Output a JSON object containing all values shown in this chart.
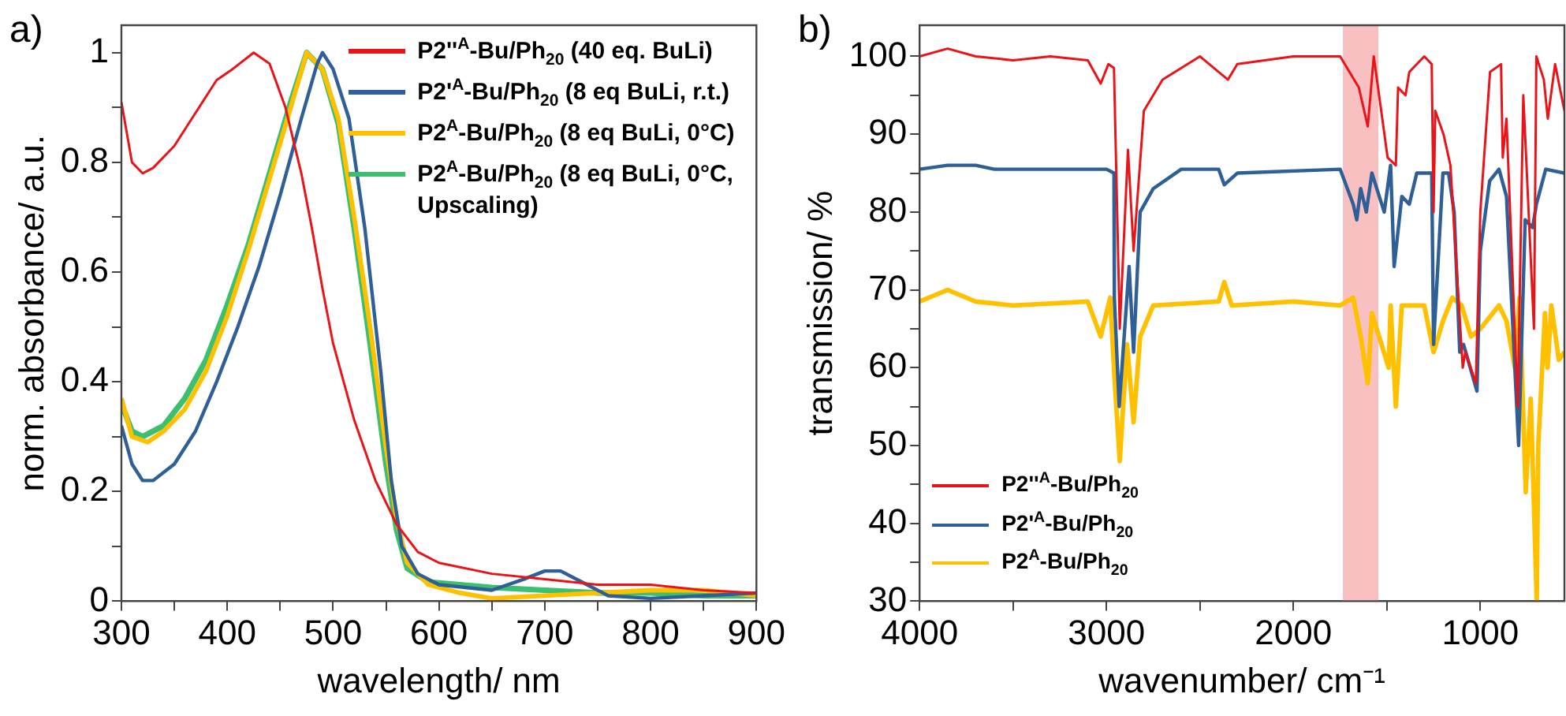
{
  "chart_data": [
    {
      "type": "line",
      "title": "a)",
      "xlabel": "wavelength/ nm",
      "ylabel": "norm. absorbance/ a.u.",
      "xlim": [
        300,
        900
      ],
      "ylim": [
        0,
        1.05
      ],
      "xticks": [
        300,
        {
          "value": 350,
          "label": null
        },
        400,
        {
          "value": 450,
          "label": null
        },
        500,
        {
          "value": 550,
          "label": null
        },
        600,
        {
          "value": 650,
          "label": null
        },
        700,
        {
          "value": 750,
          "label": null
        },
        800,
        {
          "value": 850,
          "label": null
        },
        900
      ],
      "yticks": [
        0,
        {
          "value": 0.1,
          "label": null
        },
        0.2,
        {
          "value": 0.3,
          "label": null
        },
        0.4,
        {
          "value": 0.5,
          "label": null
        },
        0.6,
        {
          "value": 0.7,
          "label": null
        },
        0.8,
        {
          "value": 0.9,
          "label": null
        },
        1
      ],
      "grid": false,
      "legend": "top right",
      "marker": "none",
      "line_style": "solid",
      "series": [
        {
          "name": "P2''$^{A}$-Bu/Ph$_{20}$ (40 eq. BuLi)",
          "color": "#e8141a",
          "x": [
            300,
            310,
            320,
            330,
            350,
            370,
            390,
            405,
            425,
            440,
            455,
            470,
            480,
            490,
            500,
            520,
            540,
            560,
            580,
            600,
            650,
            700,
            750,
            800,
            850,
            900
          ],
          "values": [
            0.91,
            0.8,
            0.78,
            0.79,
            0.83,
            0.89,
            0.95,
            0.97,
            1.0,
            0.98,
            0.9,
            0.78,
            0.68,
            0.57,
            0.47,
            0.33,
            0.22,
            0.14,
            0.09,
            0.07,
            0.05,
            0.04,
            0.03,
            0.03,
            0.02,
            0.015
          ]
        },
        {
          "name": "P2'$^{A}$-Bu/Ph$_{20}$ (8 eq BuLi, r.t.)",
          "color": "#2f5f97",
          "x": [
            300,
            310,
            320,
            330,
            350,
            370,
            390,
            410,
            430,
            450,
            470,
            485,
            490,
            500,
            515,
            530,
            545,
            555,
            565,
            580,
            600,
            650,
            680,
            700,
            715,
            740,
            760,
            800,
            850,
            900
          ],
          "values": [
            0.32,
            0.25,
            0.22,
            0.22,
            0.25,
            0.31,
            0.4,
            0.5,
            0.61,
            0.74,
            0.88,
            0.98,
            1.0,
            0.97,
            0.88,
            0.68,
            0.42,
            0.22,
            0.1,
            0.05,
            0.03,
            0.02,
            0.04,
            0.055,
            0.055,
            0.03,
            0.01,
            0.005,
            0.01,
            0.015
          ]
        },
        {
          "name": "P2$^{A}$-Bu/Ph$_{20}$ (8 eq BuLi, 0°C)",
          "color": "#ffc000",
          "x": [
            300,
            310,
            325,
            340,
            360,
            380,
            400,
            420,
            440,
            460,
            475,
            490,
            505,
            520,
            535,
            550,
            560,
            570,
            590,
            620,
            650,
            700,
            750,
            800,
            850,
            900
          ],
          "values": [
            0.37,
            0.3,
            0.29,
            0.31,
            0.35,
            0.42,
            0.52,
            0.64,
            0.77,
            0.9,
            1.0,
            0.97,
            0.88,
            0.7,
            0.5,
            0.28,
            0.15,
            0.07,
            0.03,
            0.015,
            0.005,
            0.01,
            0.015,
            0.02,
            0.02,
            0.01
          ]
        },
        {
          "name": "P2$^{A}$-Bu/Ph$_{20}$ (8 eq BuLi, 0°C, Upscaling)",
          "color": "#3cbf6e",
          "x": [
            300,
            310,
            320,
            340,
            360,
            380,
            400,
            420,
            440,
            460,
            475,
            490,
            505,
            520,
            535,
            550,
            560,
            570,
            590,
            620,
            650,
            700,
            750,
            800,
            850,
            900
          ],
          "values": [
            0.36,
            0.31,
            0.3,
            0.32,
            0.37,
            0.44,
            0.54,
            0.65,
            0.78,
            0.91,
            1.0,
            0.97,
            0.87,
            0.68,
            0.47,
            0.25,
            0.13,
            0.06,
            0.035,
            0.03,
            0.025,
            0.02,
            0.015,
            0.015,
            0.01,
            0.01
          ]
        }
      ]
    },
    {
      "type": "line",
      "title": "b)",
      "xlabel": "wavenumber/ cm⁻¹",
      "ylabel": "transmission/ %",
      "xlim": [
        4000,
        550
      ],
      "ylim": [
        30,
        104
      ],
      "xticks": [
        4000,
        {
          "value": 3500,
          "label": null
        },
        3000,
        {
          "value": 2500,
          "label": null
        },
        2000,
        {
          "value": 1500,
          "label": null
        },
        1000
      ],
      "yticks": [
        30,
        {
          "value": 35,
          "label": null
        },
        40,
        {
          "value": 45,
          "label": null
        },
        50,
        {
          "value": 55,
          "label": null
        },
        60,
        {
          "value": 65,
          "label": null
        },
        70,
        {
          "value": 75,
          "label": null
        },
        80,
        {
          "value": 85,
          "label": null
        },
        90,
        {
          "value": 95,
          "label": null
        },
        100
      ],
      "grid": false,
      "legend": "bottom left",
      "marker": "none",
      "line_style": "solid",
      "bands": [
        {
          "axis": "x",
          "from": 1735,
          "to": 1545,
          "color": "#f8c0c0"
        }
      ],
      "series": [
        {
          "name": "P2''$^{A}$-Bu/Ph$_{20}$",
          "color": "#e8141a",
          "x": [
            4000,
            3850,
            3700,
            3500,
            3300,
            3100,
            3031,
            2990,
            2960,
            2929,
            2885,
            2855,
            2800,
            2700,
            2500,
            2350,
            2300,
            2000,
            1750,
            1700,
            1650,
            1602,
            1570,
            1496,
            1452,
            1440,
            1400,
            1380,
            1300,
            1260,
            1250,
            1241,
            1197,
            1160,
            1094,
            1080,
            1024,
            1000,
            948,
            889,
            880,
            860,
            800,
            770,
            713,
            700,
            660,
            639,
            600,
            550
          ],
          "values": [
            100,
            101,
            100,
            99.5,
            100,
            99.5,
            96.5,
            99,
            98.5,
            65,
            88,
            75,
            93,
            97,
            100,
            97,
            99,
            100,
            100,
            98,
            96,
            91,
            100,
            87,
            86,
            96,
            95,
            98,
            100,
            99,
            80,
            93,
            90,
            86,
            60,
            62,
            58,
            80,
            98,
            99,
            87,
            92,
            55,
            95,
            65,
            100,
            97,
            92,
            99,
            93
          ]
        },
        {
          "name": "P2'$^{A}$-Bu/Ph$_{20}$",
          "color": "#2f5f97",
          "x": [
            4000,
            3850,
            3700,
            3600,
            3300,
            3000,
            2960,
            2958,
            2932,
            2879,
            2855,
            2820,
            2750,
            2600,
            2400,
            2370,
            2300,
            1750,
            1680,
            1661,
            1640,
            1610,
            1580,
            1514,
            1480,
            1461,
            1420,
            1380,
            1340,
            1260,
            1250,
            1200,
            1170,
            1140,
            1110,
            1090,
            1018,
            1000,
            950,
            900,
            860,
            795,
            760,
            720,
            700,
            650,
            550
          ],
          "values": [
            85.5,
            86,
            86,
            85.5,
            85.5,
            85.5,
            85,
            69,
            55,
            73,
            62,
            80,
            83,
            85.5,
            85.5,
            83.5,
            85,
            85.5,
            81,
            79,
            83,
            80,
            85,
            80,
            86,
            73,
            82,
            81,
            85,
            85,
            63,
            85,
            85,
            80,
            62,
            63,
            57,
            75,
            84,
            85.5,
            82,
            50,
            79,
            78,
            81,
            85.5,
            85
          ]
        },
        {
          "name": "P2$^{A}$-Bu/Ph$_{20}$",
          "color": "#ffc000",
          "x": [
            4000,
            3850,
            3700,
            3500,
            3100,
            3031,
            2980,
            2958,
            2929,
            2890,
            2855,
            2820,
            2750,
            2400,
            2370,
            2330,
            2000,
            1750,
            1680,
            1640,
            1602,
            1580,
            1490,
            1480,
            1452,
            1420,
            1300,
            1250,
            1200,
            1150,
            1100,
            1050,
            1000,
            900,
            860,
            815,
            790,
            757,
            730,
            698,
            690,
            654,
            640,
            620,
            580,
            550
          ],
          "values": [
            68.5,
            70,
            68.5,
            68,
            68.5,
            64,
            69,
            59,
            48,
            63,
            53,
            64,
            68,
            68.5,
            71,
            68,
            68.5,
            68,
            69,
            64,
            58,
            67,
            60,
            68,
            55,
            68,
            68,
            62,
            66,
            69,
            68,
            64,
            65,
            68,
            66,
            60,
            69,
            44,
            56,
            30,
            50,
            67,
            60,
            68,
            61,
            62
          ]
        }
      ]
    }
  ]
}
